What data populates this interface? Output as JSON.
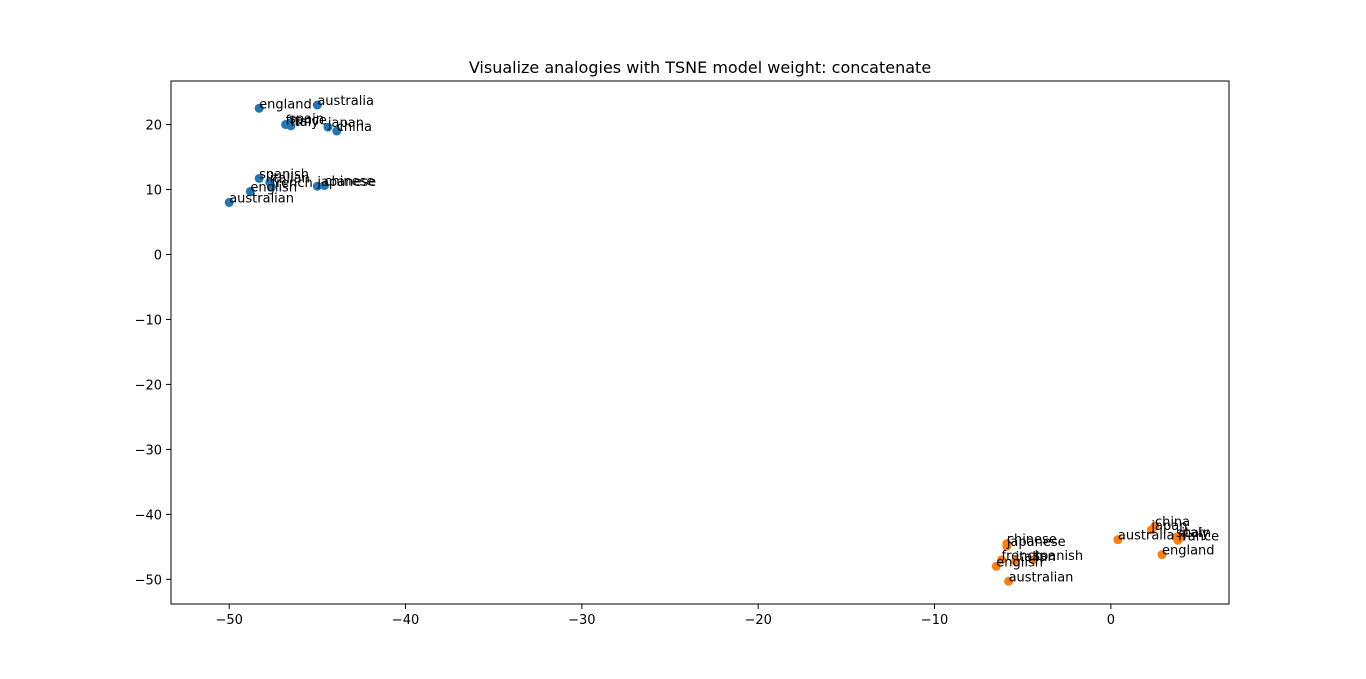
{
  "chart_data": {
    "type": "scatter",
    "title": "Visualize analogies with TSNE  model weight: concatenate",
    "xlabel": "",
    "ylabel": "",
    "xlim": [
      -53.3,
      6.7
    ],
    "ylim": [
      -53.8,
      26.7
    ],
    "xticks": [
      -50,
      -40,
      -30,
      -20,
      -10,
      0
    ],
    "yticks": [
      20,
      10,
      0,
      -10,
      -20,
      -30,
      -40,
      -50
    ],
    "xtick_labels": [
      "−50",
      "−40",
      "−30",
      "−20",
      "−10",
      "0"
    ],
    "ytick_labels": [
      "20",
      "10",
      "0",
      "−10",
      "−20",
      "−30",
      "−40",
      "−50"
    ],
    "grid": false,
    "series": [
      {
        "color": "#1f77b4",
        "points": [
          {
            "label": "england",
            "x": -48.3,
            "y": 22.5
          },
          {
            "label": "australia",
            "x": -45.0,
            "y": 23.0
          },
          {
            "label": "france",
            "x": -46.8,
            "y": 20.0
          },
          {
            "label": "spain",
            "x": -46.6,
            "y": 20.2
          },
          {
            "label": "italy",
            "x": -46.5,
            "y": 19.8
          },
          {
            "label": "japan",
            "x": -44.4,
            "y": 19.6
          },
          {
            "label": "china",
            "x": -43.9,
            "y": 19.0
          },
          {
            "label": "spanish",
            "x": -48.3,
            "y": 11.7
          },
          {
            "label": "italian",
            "x": -47.7,
            "y": 11.1
          },
          {
            "label": "french",
            "x": -47.6,
            "y": 10.4
          },
          {
            "label": "japanese",
            "x": -45.0,
            "y": 10.5
          },
          {
            "label": "chinese",
            "x": -44.6,
            "y": 10.6
          },
          {
            "label": "english",
            "x": -48.8,
            "y": 9.7
          },
          {
            "label": "australian",
            "x": -50.0,
            "y": 8.0
          }
        ]
      },
      {
        "color": "#ff7f0e",
        "points": [
          {
            "label": "china",
            "x": 2.5,
            "y": -41.8
          },
          {
            "label": "japan",
            "x": 2.3,
            "y": -42.4
          },
          {
            "label": "italy",
            "x": 4.0,
            "y": -43.5
          },
          {
            "label": "spain",
            "x": 3.7,
            "y": -43.5
          },
          {
            "label": "france",
            "x": 3.8,
            "y": -44.0
          },
          {
            "label": "australia",
            "x": 0.4,
            "y": -43.9
          },
          {
            "label": "england",
            "x": 2.9,
            "y": -46.2
          },
          {
            "label": "chinese",
            "x": -5.9,
            "y": -44.5
          },
          {
            "label": "japanese",
            "x": -5.9,
            "y": -44.9
          },
          {
            "label": "french",
            "x": -6.2,
            "y": -47.0
          },
          {
            "label": "italian",
            "x": -5.4,
            "y": -47.2
          },
          {
            "label": "spanish",
            "x": -4.4,
            "y": -47.0
          },
          {
            "label": "english",
            "x": -6.5,
            "y": -48.0
          },
          {
            "label": "australian",
            "x": -5.8,
            "y": -50.3
          }
        ]
      }
    ]
  }
}
